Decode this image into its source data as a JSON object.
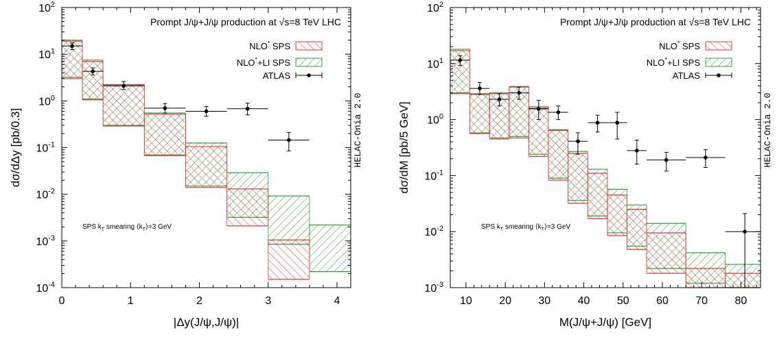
{
  "colors": {
    "red": "#e8323c",
    "green": "#2e9e3a",
    "data": "#000000",
    "frame": "#000000"
  },
  "chart_data": [
    {
      "type": "histogram-band",
      "title": "Prompt J/ψ+J/ψ production at √s=8 TeV LHC",
      "xlabel": "|Δy(J/ψ,J/ψ)|",
      "ylabel": "dσ/dΔy [pb/0.3]",
      "yscale": "log",
      "xlim": [
        0,
        4.2
      ],
      "ylim": [
        0.0001,
        100
      ],
      "xticks": [
        "0",
        "1",
        "2",
        "3",
        "4"
      ],
      "yticks": [
        {
          "base": "10",
          "exp": "-4",
          "value": 0.0001
        },
        {
          "base": "10",
          "exp": "-3",
          "value": 0.001
        },
        {
          "base": "10",
          "exp": "-2",
          "value": 0.01
        },
        {
          "base": "10",
          "exp": "-1",
          "value": 0.1
        },
        {
          "base": "10",
          "exp": "0",
          "value": 1
        },
        {
          "base": "10",
          "exp": "1",
          "value": 10
        },
        {
          "base": "10",
          "exp": "2",
          "value": 100
        }
      ],
      "side_label": "HELAC-Onia 2.0",
      "note": {
        "pre": "SPS k",
        "sub": "T",
        "post": " smearing ⟨k",
        "sub2": "T",
        "post2": "⟩=3 GeV"
      },
      "legend": [
        {
          "pre": "NLO",
          "sup": "*",
          "post": " SPS",
          "kind": "red"
        },
        {
          "pre": "NLO",
          "sup": "*",
          "post": "+LI SPS",
          "kind": "green"
        },
        {
          "pre": "ATLAS",
          "sup": "",
          "post": "",
          "kind": "data"
        }
      ],
      "series": [
        {
          "name": "NLO* SPS",
          "bins": [
            [
              0,
              0.3,
              3.0,
              19
            ],
            [
              0.3,
              0.6,
              1.05,
              7.0
            ],
            [
              0.6,
              1.2,
              0.29,
              2.2
            ],
            [
              1.2,
              1.8,
              0.067,
              0.52
            ],
            [
              1.8,
              2.4,
              0.014,
              0.105
            ],
            [
              2.4,
              3.0,
              0.0021,
              0.013
            ],
            [
              3.0,
              3.6,
              0.00015,
              0.00105
            ]
          ]
        },
        {
          "name": "NLO*+LI SPS",
          "bins": [
            [
              0,
              0.3,
              3.2,
              20
            ],
            [
              0.3,
              0.6,
              1.1,
              7.5
            ],
            [
              0.6,
              1.2,
              0.3,
              2.25
            ],
            [
              1.2,
              1.8,
              0.07,
              0.55
            ],
            [
              1.8,
              2.4,
              0.015,
              0.125
            ],
            [
              2.4,
              3.0,
              0.0032,
              0.029
            ],
            [
              3.0,
              3.6,
              0.00085,
              0.0092
            ],
            [
              3.6,
              4.2,
              0.00022,
              0.0022
            ]
          ]
        },
        {
          "name": "ATLAS",
          "points": [
            [
              0.15,
              0.15,
              15,
              12.5,
              17.5
            ],
            [
              0.45,
              0.15,
              4.3,
              3.6,
              5.1
            ],
            [
              0.9,
              0.3,
              2.1,
              1.75,
              2.6
            ],
            [
              1.5,
              0.3,
              0.7,
              0.55,
              0.88
            ],
            [
              2.1,
              0.3,
              0.6,
              0.47,
              0.76
            ],
            [
              2.7,
              0.3,
              0.68,
              0.5,
              0.9
            ],
            [
              3.3,
              0.3,
              0.145,
              0.085,
              0.21
            ]
          ]
        }
      ]
    },
    {
      "type": "histogram-band",
      "title": "Prompt J/ψ+J/ψ production at √s=8 TeV LHC",
      "xlabel": "M(J/ψ+J/ψ) [GeV]",
      "ylabel": "dσ/dM [pb/5 GeV]",
      "yscale": "log",
      "xlim": [
        6,
        85
      ],
      "ylim": [
        0.001,
        100
      ],
      "xticks": [
        "10",
        "20",
        "30",
        "40",
        "50",
        "60",
        "70",
        "80"
      ],
      "yticks": [
        {
          "base": "10",
          "exp": "-3",
          "value": 0.001
        },
        {
          "base": "10",
          "exp": "-2",
          "value": 0.01
        },
        {
          "base": "10",
          "exp": "-1",
          "value": 0.1
        },
        {
          "base": "10",
          "exp": "0",
          "value": 1
        },
        {
          "base": "10",
          "exp": "1",
          "value": 10
        },
        {
          "base": "10",
          "exp": "2",
          "value": 100
        }
      ],
      "side_label": "HELAC-Onia 2.0",
      "note": {
        "pre": "SPS k",
        "sub": "T",
        "post": " smearing ⟨k",
        "sub2": "T",
        "post2": "⟩=3 GeV"
      },
      "legend": [
        {
          "pre": "NLO",
          "sup": "*",
          "post": " SPS",
          "kind": "red"
        },
        {
          "pre": "NLO",
          "sup": "*",
          "post": "+LI SPS",
          "kind": "green"
        },
        {
          "pre": "ATLAS",
          "sup": "",
          "post": "",
          "kind": "data"
        }
      ],
      "series": [
        {
          "name": "NLO* SPS",
          "bins": [
            [
              6,
              11,
              2.9,
              17
            ],
            [
              11,
              16,
              0.56,
              2.8
            ],
            [
              16,
              21,
              0.45,
              2.9
            ],
            [
              21,
              26,
              0.47,
              3.8
            ],
            [
              26,
              31,
              0.22,
              1.6
            ],
            [
              31,
              36,
              0.083,
              0.64
            ],
            [
              36,
              41,
              0.032,
              0.25
            ],
            [
              41,
              46,
              0.017,
              0.11
            ],
            [
              46,
              51,
              0.0085,
              0.045
            ],
            [
              51,
              56,
              0.0048,
              0.025
            ],
            [
              56,
              66,
              0.0018,
              0.0095
            ],
            [
              66,
              76,
              0.0009,
              0.0022
            ],
            [
              76,
              85,
              0.0006,
              0.0018
            ]
          ]
        },
        {
          "name": "NLO*+LI SPS",
          "bins": [
            [
              6,
              11,
              3.0,
              18
            ],
            [
              11,
              16,
              0.58,
              2.9
            ],
            [
              16,
              21,
              0.47,
              3.0
            ],
            [
              21,
              26,
              0.5,
              3.9
            ],
            [
              26,
              31,
              0.24,
              1.7
            ],
            [
              31,
              36,
              0.09,
              0.66
            ],
            [
              36,
              41,
              0.036,
              0.27
            ],
            [
              41,
              46,
              0.019,
              0.13
            ],
            [
              46,
              51,
              0.0095,
              0.057
            ],
            [
              51,
              56,
              0.0055,
              0.03
            ],
            [
              56,
              66,
              0.0022,
              0.014
            ],
            [
              66,
              76,
              0.0012,
              0.0042
            ],
            [
              76,
              85,
              0.0008,
              0.0026
            ]
          ]
        },
        {
          "name": "ATLAS",
          "points": [
            [
              8.5,
              2.5,
              11.5,
              9.2,
              13.8
            ],
            [
              13.5,
              2.5,
              3.6,
              2.8,
              4.6
            ],
            [
              18.5,
              2.5,
              2.3,
              1.75,
              2.9
            ],
            [
              23.5,
              2.5,
              3.0,
              2.3,
              3.8
            ],
            [
              28.5,
              2.5,
              1.55,
              1.0,
              2.2
            ],
            [
              33.5,
              2.5,
              1.35,
              1.0,
              1.75
            ],
            [
              38.5,
              2.5,
              0.41,
              0.24,
              0.58
            ],
            [
              43.5,
              2.5,
              0.88,
              0.6,
              1.2
            ],
            [
              48.5,
              2.5,
              0.88,
              0.45,
              1.35
            ],
            [
              53.5,
              2.5,
              0.28,
              0.16,
              0.43
            ],
            [
              61,
              5,
              0.19,
              0.12,
              0.26
            ],
            [
              71,
              5,
              0.21,
              0.14,
              0.29
            ],
            [
              81,
              5,
              0.01,
              0.001,
              0.021
            ]
          ]
        }
      ]
    }
  ]
}
